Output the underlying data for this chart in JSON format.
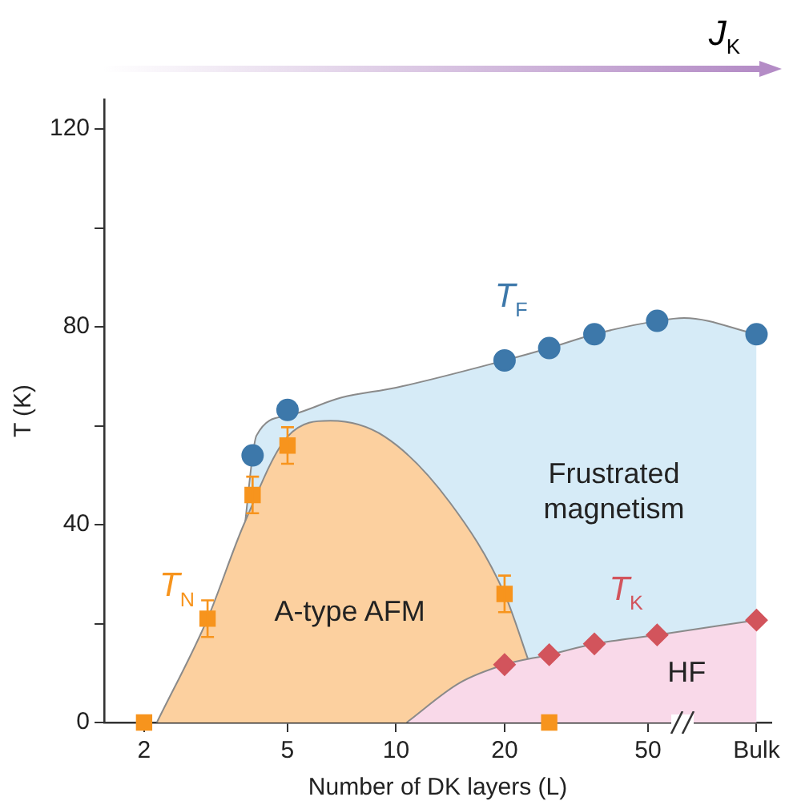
{
  "chart_data": {
    "type": "scatter",
    "xlabel": "Number of DK layers (L)",
    "ylabel": "T (K)",
    "log": "x",
    "grid": false,
    "legend": false,
    "xlim": [
      1.55,
      110
    ],
    "xticks": [
      2,
      5,
      10,
      20,
      50,
      {
        "value": 100,
        "label": "Bulk"
      }
    ],
    "ylim": [
      0,
      126
    ],
    "yticks": [
      0,
      {
        "value": 20,
        "label": null
      },
      40,
      {
        "value": 60,
        "label": null
      },
      80,
      {
        "value": 100,
        "label": null
      },
      120
    ],
    "series": [
      {
        "type": "area",
        "color": "#d6ebf7",
        "x": [
          3.78,
          4.1,
          5,
          7.06,
          10,
          20,
          26.6,
          35.5,
          53,
          63,
          100
        ],
        "values": [
          38,
          58,
          62,
          65.7,
          67.7,
          73.2,
          75.7,
          78.5,
          81.2,
          81.8,
          78.5
        ]
      },
      {
        "type": "area",
        "color": "#fcd09f",
        "x": [
          2.17,
          3,
          3.78,
          5,
          6.58,
          9.3,
          14.1,
          20,
          23,
          26.6
        ],
        "values": [
          0,
          21,
          40,
          57.8,
          61,
          57.8,
          44.5,
          26,
          13.7,
          0
        ]
      },
      {
        "type": "area",
        "color": "#f9d9e9",
        "x": [
          10.7,
          15,
          20,
          26.6,
          35.5,
          53,
          100
        ],
        "values": [
          0,
          8,
          11.7,
          13.7,
          15.9,
          17.7,
          20.7
        ]
      },
      {
        "name": "T$_{F}$",
        "color": "#3d78aa",
        "marker": "circle",
        "x": [
          4,
          5,
          20,
          26.6,
          35.5,
          53,
          100
        ],
        "values": [
          54,
          63.2,
          73.2,
          75.7,
          78.5,
          81.2,
          78.5
        ]
      },
      {
        "name": "T$_{N}$",
        "color": "#f7941d",
        "marker": "square",
        "x": [
          2,
          3,
          4,
          5,
          20,
          26.6
        ],
        "values": [
          0,
          21,
          46,
          56,
          26,
          0
        ],
        "errors": [
          null,
          3.7,
          3.7,
          3.7,
          3.7,
          null
        ]
      },
      {
        "name": "T$_{K}$",
        "color": "#d2545c",
        "marker": "diamond",
        "x": [
          20,
          26.6,
          35.5,
          53,
          100
        ],
        "values": [
          11.7,
          13.7,
          15.9,
          17.7,
          20.7
        ]
      }
    ],
    "annotations": [
      "Frustrated\nmagnetism",
      "A-type AFM",
      "HF",
      "J$_{K}$"
    ]
  }
}
